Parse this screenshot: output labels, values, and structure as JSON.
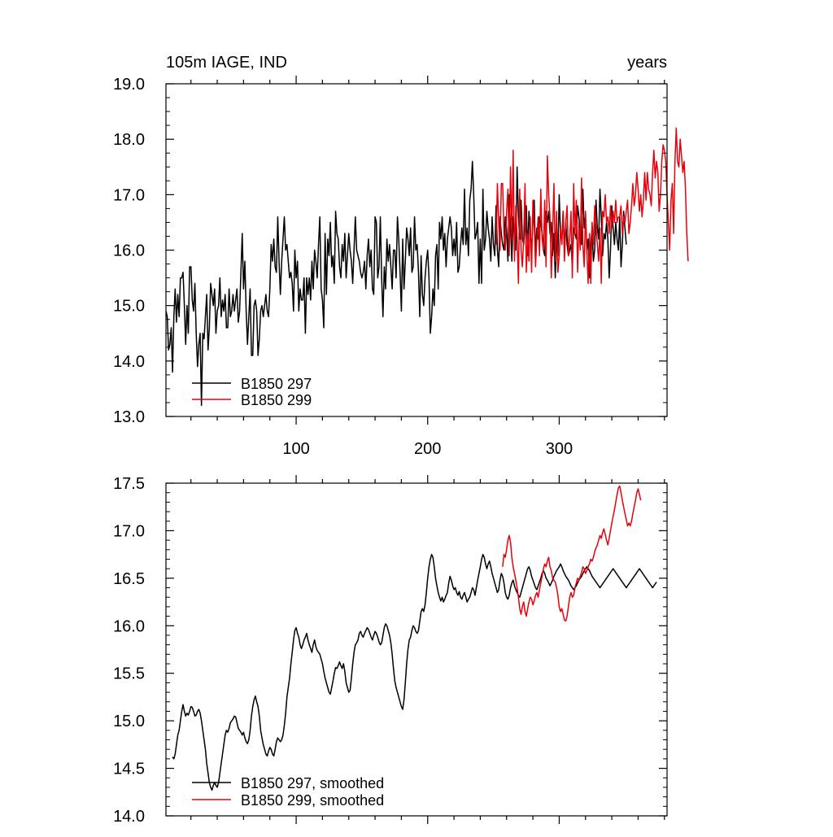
{
  "chart_data": [
    {
      "type": "line",
      "title": "105m IAGE, IND",
      "units": "years",
      "xlim": [
        1,
        382
      ],
      "ylim": [
        13.0,
        19.0
      ],
      "x_ticks": [
        100,
        200,
        300
      ],
      "y_ticks": [
        "13.0",
        "14.0",
        "15.0",
        "16.0",
        "17.0",
        "18.0",
        "19.0"
      ],
      "legend_position": "bottom-left",
      "series": [
        {
          "name": "B1850 297",
          "color": "#000000",
          "x_start": 1,
          "values": [
            14.9,
            14.8,
            14.2,
            14.3,
            14.6,
            13.8,
            14.8,
            15.3,
            14.7,
            15.2,
            14.8,
            15.5,
            15.5,
            15.6,
            15.0,
            14.3,
            15.0,
            14.5,
            15.7,
            15.7,
            15.1,
            14.9,
            15.4,
            14.5,
            13.9,
            14.3,
            14.5,
            13.2,
            14.5,
            14.4,
            14.8,
            15.2,
            14.2,
            14.6,
            15.4,
            15.2,
            15.0,
            15.3,
            14.5,
            14.9,
            15.0,
            15.5,
            14.8,
            15.1,
            14.9,
            15.2,
            14.6,
            14.6,
            15.3,
            14.8,
            14.9,
            15.2,
            14.9,
            15.1,
            15.3,
            14.7,
            14.9,
            15.6,
            16.3,
            15.3,
            15.8,
            14.9,
            14.3,
            14.8,
            15.3,
            14.1,
            14.1,
            15.0,
            15.1,
            14.9,
            14.1,
            14.4,
            14.9,
            15.0,
            14.8,
            15.0,
            15.2,
            14.9,
            14.8,
            15.3,
            16.1,
            15.8,
            16.2,
            15.7,
            15.6,
            16.6,
            15.8,
            15.2,
            15.8,
            16.2,
            16.6,
            16.0,
            16.1,
            15.8,
            15.5,
            15.6,
            15.4,
            14.9,
            16.0,
            15.5,
            15.8,
            14.9,
            15.3,
            15.1,
            15.1,
            15.5,
            14.5,
            15.5,
            15.2,
            15.5,
            15.1,
            15.8,
            15.3,
            16.0,
            15.8,
            15.5,
            16.1,
            16.6,
            15.3,
            15.1,
            14.6,
            16.3,
            15.2,
            16.2,
            15.9,
            16.5,
            15.7,
            15.9,
            15.4,
            16.7,
            16.3,
            16.2,
            15.7,
            15.5,
            16.1,
            15.8,
            16.3,
            15.5,
            15.9,
            16.3,
            16.0,
            15.8,
            15.4,
            16.0,
            16.6,
            16.0,
            15.9,
            15.8,
            15.6,
            15.5,
            15.6,
            15.8,
            15.3,
            15.9,
            16.2,
            15.7,
            16.0,
            15.3,
            15.2,
            16.6,
            16.5,
            15.5,
            15.7,
            16.6,
            15.5,
            14.8,
            15.7,
            15.3,
            16.2,
            15.8,
            16.1,
            15.7,
            15.3,
            16.0,
            16.0,
            15.5,
            16.6,
            16.2,
            15.6,
            14.9,
            16.2,
            15.3,
            15.8,
            16.4,
            16.2,
            15.9,
            16.4,
            15.6,
            15.7,
            16.6,
            16.0,
            16.1,
            15.6,
            14.8,
            15.9,
            15.2,
            15.0,
            15.5,
            15.8,
            16.0,
            15.5,
            14.5,
            14.8,
            15.3,
            15.0,
            15.9,
            16.1,
            15.3,
            16.5,
            16.2,
            16.6,
            16.0,
            16.3,
            15.7,
            16.2,
            16.4,
            16.6,
            16.4,
            15.9,
            16.2,
            15.9,
            16.5,
            15.6,
            15.7,
            16.1,
            16.4,
            16.1,
            17.1,
            16.1,
            16.4,
            15.9,
            16.9,
            17.1,
            17.6,
            17.0,
            16.2,
            16.3,
            16.5,
            15.4,
            16.2,
            15.4,
            17.1,
            16.0,
            16.2,
            16.7,
            16.4,
            16.2,
            15.8,
            16.6,
            16.1,
            15.9,
            16.8,
            16.0,
            15.7,
            16.6,
            16.3,
            16.1,
            16.0,
            16.6,
            16.4,
            15.8,
            17.0,
            16.4,
            15.8,
            16.6,
            16.2,
            16.0,
            17.5,
            16.6,
            16.2,
            16.9,
            16.2,
            16.1,
            16.5,
            16.8,
            15.9,
            16.7,
            16.3,
            16.0,
            16.5,
            16.9,
            15.9,
            16.4,
            16.2,
            16.6,
            16.5,
            16.3,
            16.0,
            15.9,
            16.7,
            16.5,
            16.7,
            16.3,
            16.5,
            15.9,
            16.3,
            15.5,
            16.2,
            15.9,
            17.0,
            16.3,
            16.2,
            16.7,
            16.0,
            16.5,
            16.1,
            15.9,
            16.0,
            16.1,
            15.7,
            16.4,
            16.3,
            16.2,
            16.8,
            16.6,
            16.3,
            16.1,
            17.1,
            16.4,
            16.6,
            16.0,
            16.2,
            15.5,
            16.1,
            16.4,
            15.8,
            16.0,
            16.9,
            16.4,
            16.2,
            17.1,
            16.6,
            15.9,
            16.3,
            16.2,
            16.5,
            16.2,
            15.5,
            16.0,
            16.8,
            16.4,
            16.1,
            16.5,
            16.2,
            16.0,
            16.6,
            15.7,
            16.1,
            16.7,
            16.4,
            16.1
          ]
        },
        {
          "name": "B1850 299",
          "color": "#e8000b",
          "x_start": 252,
          "values": [
            16.1,
            17.2,
            16.5,
            16.0,
            17.2,
            17.2,
            16.3,
            16.0,
            16.7,
            17.1,
            15.9,
            17.5,
            16.2,
            17.8,
            15.8,
            16.8,
            16.2,
            15.4,
            17.1,
            16.0,
            15.7,
            16.2,
            17.2,
            15.6,
            16.3,
            15.8,
            16.6,
            15.6,
            16.9,
            16.5,
            15.7,
            16.2,
            16.6,
            15.9,
            17.1,
            16.2,
            16.0,
            16.9,
            15.7,
            17.7,
            17.0,
            16.6,
            15.5,
            16.3,
            17.2,
            15.8,
            16.7,
            15.6,
            15.9,
            16.4,
            16.1,
            16.7,
            15.8,
            16.5,
            16.8,
            15.9,
            16.2,
            16.7,
            15.5,
            17.2,
            16.3,
            16.9,
            15.6,
            16.5,
            16.0,
            17.3,
            16.1,
            15.7,
            16.7,
            16.0,
            15.4,
            16.3,
            15.4,
            16.5,
            16.1,
            16.8,
            16.4,
            16.1,
            15.8,
            16.4,
            15.4,
            16.7,
            16.6,
            17.0,
            16.5,
            16.6,
            16.3,
            16.8,
            16.4,
            16.7,
            16.5,
            16.9,
            16.5,
            16.6,
            16.6,
            16.8,
            16.3,
            16.6,
            16.5,
            16.7,
            16.9,
            16.3,
            16.5,
            16.8,
            17.2,
            16.8,
            17.0,
            17.4,
            17.1,
            16.7,
            17.0,
            16.6,
            16.9,
            17.4,
            16.9,
            17.4,
            17.1,
            17.0,
            16.8,
            17.4,
            17.8,
            17.3,
            17.6,
            17.4,
            16.7,
            17.0,
            17.6,
            17.9,
            17.8,
            17.6,
            17.0,
            16.5,
            16.0,
            16.9,
            17.2,
            16.3,
            17.6,
            18.2,
            17.6,
            17.5,
            18.0,
            17.7,
            17.4,
            17.6,
            17.1,
            16.3,
            15.8
          ]
        }
      ]
    },
    {
      "type": "line",
      "title": "",
      "xlim": [
        1,
        382
      ],
      "ylim": [
        14.0,
        17.5
      ],
      "y_ticks": [
        "14.0",
        "14.5",
        "15.0",
        "15.5",
        "16.0",
        "16.5",
        "17.0",
        "17.5"
      ],
      "legend_position": "bottom-left",
      "series": [
        {
          "name": "B1850 297, smoothed",
          "color": "#000000",
          "x_start": 6,
          "values": [
            14.62,
            14.6,
            14.65,
            14.75,
            14.85,
            14.9,
            15.0,
            15.1,
            15.17,
            15.1,
            15.05,
            15.08,
            15.06,
            15.1,
            15.15,
            15.14,
            15.1,
            15.05,
            15.06,
            15.1,
            15.12,
            15.08,
            15.0,
            14.9,
            14.8,
            14.7,
            14.55,
            14.45,
            14.35,
            14.3,
            14.27,
            14.32,
            14.35,
            14.32,
            14.3,
            14.35,
            14.45,
            14.55,
            14.65,
            14.75,
            14.85,
            14.9,
            14.88,
            14.92,
            14.98,
            15.0,
            15.02,
            15.05,
            15.04,
            14.98,
            14.92,
            14.9,
            14.88,
            14.85,
            14.88,
            14.82,
            14.78,
            14.76,
            14.8,
            14.9,
            15.05,
            15.15,
            15.22,
            15.26,
            15.2,
            15.15,
            15.05,
            14.9,
            14.82,
            14.75,
            14.7,
            14.65,
            14.63,
            14.68,
            14.72,
            14.7,
            14.65,
            14.63,
            14.7,
            14.78,
            14.82,
            14.8,
            14.78,
            14.8,
            14.85,
            14.95,
            15.08,
            15.25,
            15.35,
            15.45,
            15.6,
            15.72,
            15.85,
            15.95,
            15.98,
            15.92,
            15.88,
            15.8,
            15.76,
            15.8,
            15.85,
            15.88,
            15.92,
            15.85,
            15.8,
            15.76,
            15.72,
            15.8,
            15.85,
            15.78,
            15.74,
            15.72,
            15.7,
            15.65,
            15.6,
            15.52,
            15.45,
            15.4,
            15.35,
            15.3,
            15.28,
            15.35,
            15.42,
            15.5,
            15.56,
            15.55,
            15.58,
            15.62,
            15.58,
            15.55,
            15.6,
            15.52,
            15.4,
            15.35,
            15.3,
            15.32,
            15.45,
            15.6,
            15.72,
            15.8,
            15.82,
            15.85,
            15.92,
            15.94,
            15.9,
            15.88,
            15.92,
            15.95,
            15.98,
            15.96,
            15.92,
            15.88,
            15.85,
            15.9,
            15.94,
            15.92,
            15.88,
            15.83,
            15.8,
            15.82,
            15.9,
            15.98,
            16.02,
            16.0,
            15.95,
            15.9,
            15.82,
            15.7,
            15.55,
            15.42,
            15.35,
            15.3,
            15.25,
            15.2,
            15.15,
            15.12,
            15.22,
            15.4,
            15.6,
            15.75,
            15.85,
            15.88,
            15.95,
            16.0,
            15.98,
            15.94,
            15.92,
            15.95,
            16.05,
            16.15,
            16.18,
            16.15,
            16.22,
            16.35,
            16.5,
            16.62,
            16.7,
            16.75,
            16.72,
            16.62,
            16.5,
            16.42,
            16.35,
            16.3,
            16.26,
            16.3,
            16.25,
            16.28,
            16.32,
            16.35,
            16.45,
            16.52,
            16.48,
            16.42,
            16.38,
            16.4,
            16.35,
            16.32,
            16.36,
            16.3,
            16.28,
            16.32,
            16.35,
            16.3,
            16.25,
            16.28,
            16.3,
            16.35,
            16.4,
            16.38,
            16.32,
            16.4,
            16.48,
            16.55,
            16.62,
            16.7,
            16.75,
            16.72,
            16.65,
            16.6,
            16.65,
            16.68,
            16.62,
            16.55,
            16.5,
            16.45,
            16.4,
            16.35,
            16.38,
            16.48,
            16.55,
            16.52,
            16.45,
            16.35,
            16.3,
            16.28,
            16.32,
            16.4,
            16.45,
            16.48,
            16.42,
            16.38,
            16.35,
            16.32,
            16.3,
            16.35,
            16.4,
            16.45,
            16.5,
            16.55,
            16.6,
            16.62,
            16.58,
            16.52,
            16.48,
            16.44,
            16.4,
            16.38,
            16.42,
            16.46,
            16.5,
            16.55,
            16.58,
            16.55,
            16.5,
            16.48,
            16.45,
            16.42,
            16.45,
            16.48,
            16.52,
            16.55,
            16.58,
            16.6,
            16.62,
            16.65,
            16.62,
            16.58,
            16.55,
            16.52,
            16.5,
            16.48,
            16.45,
            16.42,
            16.4,
            16.38,
            16.4,
            16.42,
            16.45,
            16.48,
            16.5,
            16.52,
            16.55,
            16.58,
            16.6,
            16.62,
            16.6,
            16.58,
            16.55,
            16.52,
            16.5,
            16.48,
            16.46,
            16.44,
            16.42,
            16.4,
            16.42,
            16.44,
            16.46,
            16.48,
            16.5,
            16.52,
            16.54,
            16.56,
            16.58,
            16.6,
            16.58,
            16.56,
            16.54,
            16.52,
            16.5,
            16.48,
            16.46,
            16.44,
            16.42,
            16.4,
            16.42,
            16.44,
            16.46,
            16.48,
            16.5,
            16.52,
            16.54,
            16.56,
            16.58,
            16.6,
            16.58,
            16.56,
            16.54,
            16.52,
            16.5,
            16.48,
            16.46,
            16.44,
            16.42,
            16.4,
            16.42,
            16.44,
            16.46
          ]
        },
        {
          "name": "B1850 299, smoothed",
          "color": "#e8000b",
          "x_start": 257,
          "values": [
            16.62,
            16.75,
            16.72,
            16.8,
            16.9,
            16.95,
            16.88,
            16.72,
            16.62,
            16.55,
            16.48,
            16.4,
            16.3,
            16.18,
            16.12,
            16.2,
            16.25,
            16.15,
            16.1,
            16.18,
            16.25,
            16.3,
            16.28,
            16.22,
            16.26,
            16.32,
            16.35,
            16.3,
            16.38,
            16.45,
            16.52,
            16.6,
            16.65,
            16.62,
            16.68,
            16.72,
            16.62,
            16.58,
            16.5,
            16.48,
            16.46,
            16.4,
            16.32,
            16.2,
            16.15,
            16.18,
            16.12,
            16.06,
            16.05,
            16.1,
            16.2,
            16.3,
            16.35,
            16.3,
            16.32,
            16.4,
            16.45,
            16.5,
            16.48,
            16.52,
            16.56,
            16.62,
            16.6,
            16.55,
            16.58,
            16.62,
            16.65,
            16.7,
            16.68,
            16.72,
            16.78,
            16.82,
            16.85,
            16.9,
            16.95,
            16.92,
            16.98,
            17.02,
            16.96,
            16.9,
            16.85,
            16.92,
            17.0,
            17.08,
            17.15,
            17.22,
            17.3,
            17.38,
            17.45,
            17.47,
            17.4,
            17.32,
            17.25,
            17.18,
            17.12,
            17.05,
            17.08,
            17.05,
            17.1,
            17.18,
            17.25,
            17.32,
            17.4,
            17.44,
            17.38,
            17.32
          ]
        }
      ]
    }
  ]
}
